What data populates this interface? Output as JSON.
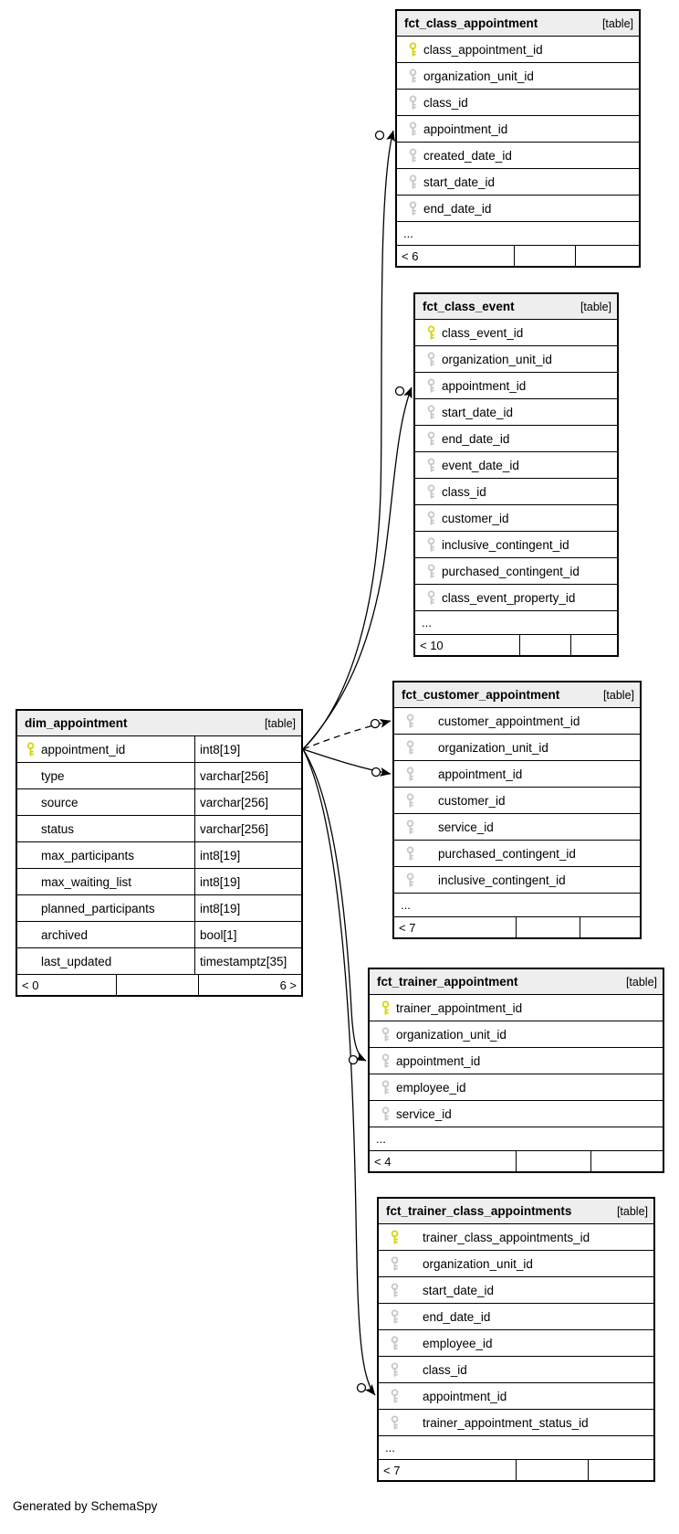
{
  "page": {
    "footer_note": "Generated by SchemaSpy"
  },
  "colors": {
    "primary_key": "#d4d40a",
    "foreign_key": "#c6c6c6",
    "header_bg": "#eeeeee",
    "border": "#000000",
    "background": "#ffffff"
  },
  "tables": [
    {
      "id": "fct_class_appointment",
      "name": "fct_class_appointment",
      "tag": "[table]",
      "columns": [
        {
          "icon": "primary-key",
          "name": "class_appointment_id"
        },
        {
          "icon": "foreign-key",
          "name": "organization_unit_id"
        },
        {
          "icon": "foreign-key",
          "name": "class_id"
        },
        {
          "icon": "foreign-key",
          "name": "appointment_id"
        },
        {
          "icon": "foreign-key",
          "name": "created_date_id"
        },
        {
          "icon": "foreign-key",
          "name": "start_date_id"
        },
        {
          "icon": "foreign-key",
          "name": "end_date_id"
        }
      ],
      "ellipsis": "...",
      "footer": [
        "< 6",
        "",
        ""
      ]
    },
    {
      "id": "fct_class_event",
      "name": "fct_class_event",
      "tag": "[table]",
      "columns": [
        {
          "icon": "primary-key",
          "name": "class_event_id"
        },
        {
          "icon": "foreign-key",
          "name": "organization_unit_id"
        },
        {
          "icon": "foreign-key",
          "name": "appointment_id"
        },
        {
          "icon": "foreign-key",
          "name": "start_date_id"
        },
        {
          "icon": "foreign-key",
          "name": "end_date_id"
        },
        {
          "icon": "foreign-key",
          "name": "event_date_id"
        },
        {
          "icon": "foreign-key",
          "name": "class_id"
        },
        {
          "icon": "foreign-key",
          "name": "customer_id"
        },
        {
          "icon": "foreign-key",
          "name": "inclusive_contingent_id"
        },
        {
          "icon": "foreign-key",
          "name": "purchased_contingent_id"
        },
        {
          "icon": "foreign-key",
          "name": "class_event_property_id"
        }
      ],
      "ellipsis": "...",
      "footer": [
        "< 10",
        "",
        ""
      ]
    },
    {
      "id": "fct_customer_appointment",
      "name": "fct_customer_appointment",
      "tag": "[table]",
      "wide_indent": true,
      "columns": [
        {
          "icon": "foreign-key",
          "name": "customer_appointment_id"
        },
        {
          "icon": "foreign-key",
          "name": "organization_unit_id"
        },
        {
          "icon": "foreign-key",
          "name": "appointment_id"
        },
        {
          "icon": "foreign-key",
          "name": "customer_id"
        },
        {
          "icon": "foreign-key",
          "name": "service_id"
        },
        {
          "icon": "foreign-key",
          "name": "purchased_contingent_id"
        },
        {
          "icon": "foreign-key",
          "name": "inclusive_contingent_id"
        }
      ],
      "ellipsis": "...",
      "footer": [
        "< 7",
        "",
        ""
      ]
    },
    {
      "id": "dim_appointment",
      "name": "dim_appointment",
      "tag": "[table]",
      "columns": [
        {
          "icon": "primary-key",
          "name": "appointment_id",
          "type": "int8[19]"
        },
        {
          "icon": "none",
          "name": "type",
          "type": "varchar[256]"
        },
        {
          "icon": "none",
          "name": "source",
          "type": "varchar[256]"
        },
        {
          "icon": "none",
          "name": "status",
          "type": "varchar[256]"
        },
        {
          "icon": "none",
          "name": "max_participants",
          "type": "int8[19]"
        },
        {
          "icon": "none",
          "name": "max_waiting_list",
          "type": "int8[19]"
        },
        {
          "icon": "none",
          "name": "planned_participants",
          "type": "int8[19]"
        },
        {
          "icon": "none",
          "name": "archived",
          "type": "bool[1]"
        },
        {
          "icon": "none",
          "name": "last_updated",
          "type": "timestamptz[35]"
        }
      ],
      "ellipsis": null,
      "footer": [
        "< 0",
        "",
        "6 >"
      ]
    },
    {
      "id": "fct_trainer_appointment",
      "name": "fct_trainer_appointment",
      "tag": "[table]",
      "columns": [
        {
          "icon": "primary-key",
          "name": "trainer_appointment_id"
        },
        {
          "icon": "foreign-key",
          "name": "organization_unit_id"
        },
        {
          "icon": "foreign-key",
          "name": "appointment_id"
        },
        {
          "icon": "foreign-key",
          "name": "employee_id"
        },
        {
          "icon": "foreign-key",
          "name": "service_id"
        }
      ],
      "ellipsis": "...",
      "footer": [
        "< 4",
        "",
        ""
      ]
    },
    {
      "id": "fct_trainer_class_appointments",
      "name": "fct_trainer_class_appointments",
      "tag": "[table]",
      "wide_indent": true,
      "columns": [
        {
          "icon": "primary-key",
          "name": "trainer_class_appointments_id"
        },
        {
          "icon": "foreign-key",
          "name": "organization_unit_id"
        },
        {
          "icon": "foreign-key",
          "name": "start_date_id"
        },
        {
          "icon": "foreign-key",
          "name": "end_date_id"
        },
        {
          "icon": "foreign-key",
          "name": "employee_id"
        },
        {
          "icon": "foreign-key",
          "name": "class_id"
        },
        {
          "icon": "foreign-key",
          "name": "appointment_id"
        },
        {
          "icon": "foreign-key",
          "name": "trainer_appointment_status_id"
        }
      ],
      "ellipsis": "...",
      "footer": [
        "< 7",
        "",
        ""
      ]
    }
  ],
  "relationships": [
    {
      "from_table": "dim_appointment",
      "from_column": "appointment_id",
      "to_table": "fct_class_appointment",
      "to_column": "appointment_id",
      "style": "solid"
    },
    {
      "from_table": "dim_appointment",
      "from_column": "appointment_id",
      "to_table": "fct_class_event",
      "to_column": "appointment_id",
      "style": "solid"
    },
    {
      "from_table": "dim_appointment",
      "from_column": "appointment_id",
      "to_table": "fct_customer_appointment",
      "to_column": "customer_appointment_id",
      "style": "dashed"
    },
    {
      "from_table": "dim_appointment",
      "from_column": "appointment_id",
      "to_table": "fct_customer_appointment",
      "to_column": "appointment_id",
      "style": "solid"
    },
    {
      "from_table": "dim_appointment",
      "from_column": "appointment_id",
      "to_table": "fct_trainer_appointment",
      "to_column": "appointment_id",
      "style": "solid"
    },
    {
      "from_table": "dim_appointment",
      "from_column": "appointment_id",
      "to_table": "fct_trainer_class_appointments",
      "to_column": "appointment_id",
      "style": "solid"
    }
  ]
}
